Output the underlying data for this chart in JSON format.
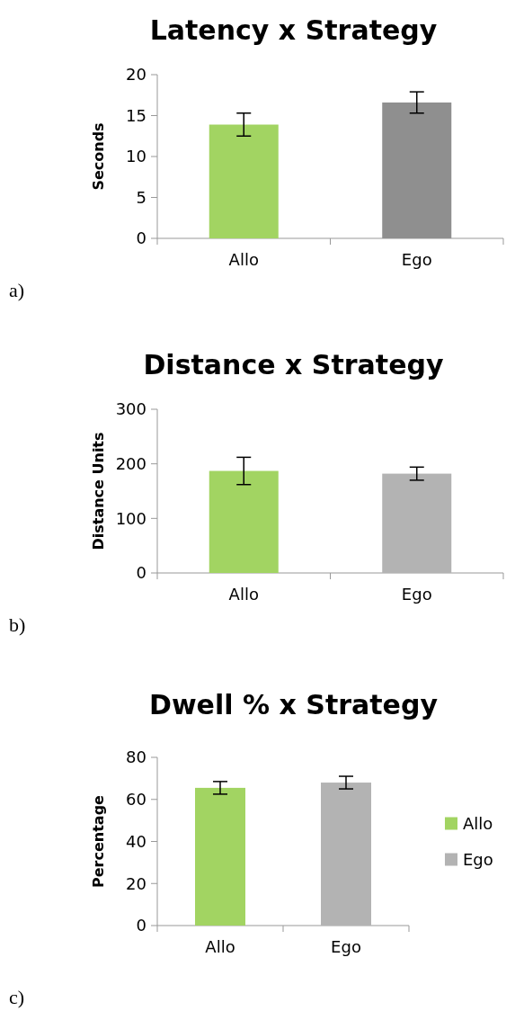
{
  "chart_data": [
    {
      "type": "bar",
      "title": "Latency x Strategy",
      "ylabel": "Seconds",
      "categories": [
        "Allo",
        "Ego"
      ],
      "values": [
        13.9,
        16.6
      ],
      "errors": [
        1.4,
        1.3
      ],
      "colors": [
        "#a2d462",
        "#8f8f8f"
      ],
      "ylim": [
        0,
        20
      ],
      "yticks": [
        0,
        5,
        10,
        15,
        20
      ],
      "annotations": [
        "a)"
      ]
    },
    {
      "type": "bar",
      "title": "Distance x Strategy",
      "ylabel": "Distance Units",
      "categories": [
        "Allo",
        "Ego"
      ],
      "values": [
        187,
        182
      ],
      "errors": [
        25,
        12
      ],
      "colors": [
        "#a2d462",
        "#b3b3b3"
      ],
      "ylim": [
        0,
        300
      ],
      "yticks": [
        0,
        100,
        200,
        300
      ],
      "annotations": [
        "b)"
      ]
    },
    {
      "type": "bar",
      "title": "Dwell % x Strategy",
      "ylabel": "Percentage",
      "categories": [
        "Allo",
        "Ego"
      ],
      "stacked": true,
      "series": [
        {
          "name": "Allo",
          "color": "#a2d462",
          "values": [
            65.5,
            null
          ],
          "errors": [
            3,
            null
          ]
        },
        {
          "name": "Ego",
          "color": "#b3b3b3",
          "values": [
            null,
            68
          ],
          "errors": [
            null,
            3
          ]
        }
      ],
      "ylim": [
        0,
        80
      ],
      "yticks": [
        0,
        20,
        40,
        60,
        80
      ],
      "legend": "right",
      "annotations": [
        "c)"
      ]
    }
  ]
}
